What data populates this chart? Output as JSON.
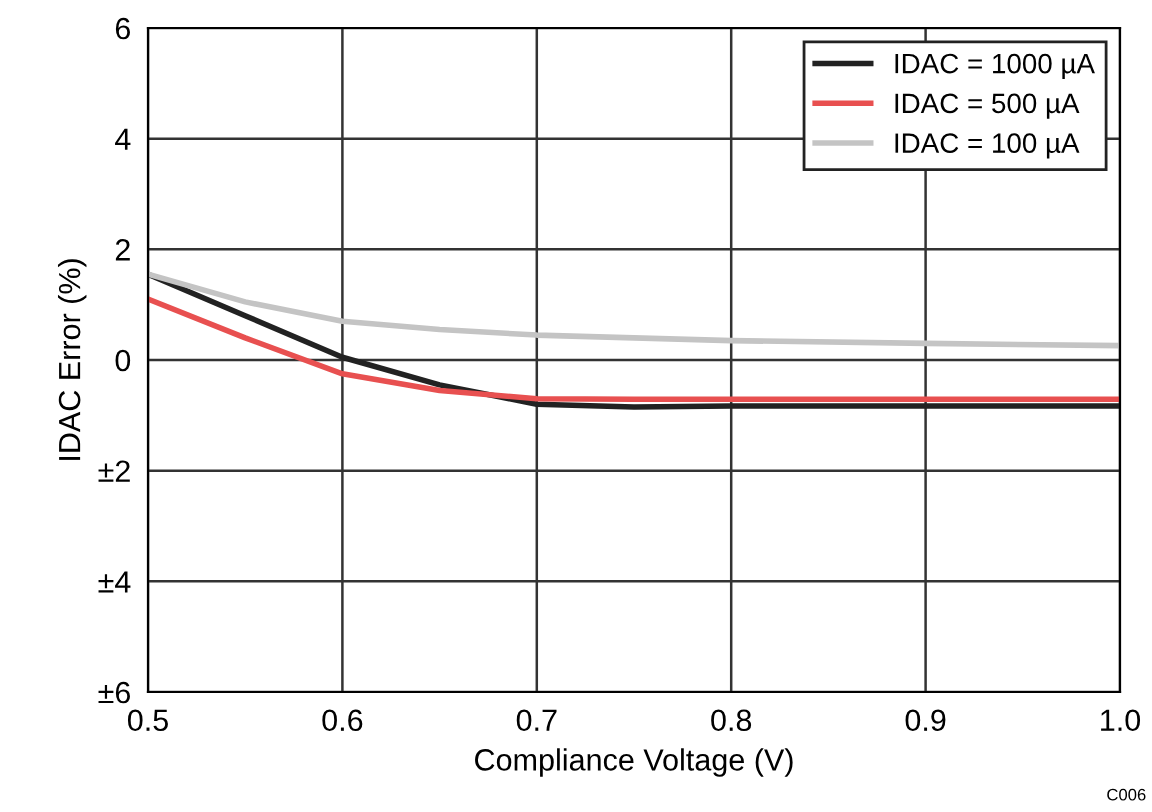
{
  "chart_data": {
    "type": "line",
    "xlabel": "Compliance Voltage (V)",
    "ylabel": "IDAC Error (%)",
    "xlim": [
      0.5,
      1.0
    ],
    "xticks": [
      0.5,
      0.6,
      0.7,
      0.8,
      0.9,
      {
        "value": 1.0,
        "label": "1.0"
      }
    ],
    "ylim": [
      -6,
      6
    ],
    "yticks": [
      {
        "value": -6,
        "label": "±6"
      },
      {
        "value": -4,
        "label": "±4"
      },
      {
        "value": -2,
        "label": "±2"
      },
      0,
      2,
      4,
      6
    ],
    "grid": true,
    "legend": "top right",
    "line_style": "solid",
    "marker": "none",
    "x": [
      0.5,
      0.55,
      0.6,
      0.65,
      0.7,
      0.75,
      0.8,
      0.9,
      1.0
    ],
    "series": [
      {
        "name": "IDAC = 1000 µA",
        "color": "#222222",
        "values": [
          1.55,
          0.8,
          0.05,
          -0.45,
          -0.8,
          -0.85,
          -0.83,
          -0.83,
          -0.83
        ]
      },
      {
        "name": "IDAC = 500 µA",
        "color": "#e85050",
        "values": [
          1.1,
          0.4,
          -0.25,
          -0.55,
          -0.7,
          -0.71,
          -0.71,
          -0.71,
          -0.71
        ]
      },
      {
        "name": "IDAC = 100 µA",
        "color": "#c4c4c4",
        "values": [
          1.55,
          1.05,
          0.7,
          0.55,
          0.45,
          0.4,
          0.35,
          0.3,
          0.26
        ]
      }
    ],
    "annotations": [
      "C006"
    ]
  }
}
